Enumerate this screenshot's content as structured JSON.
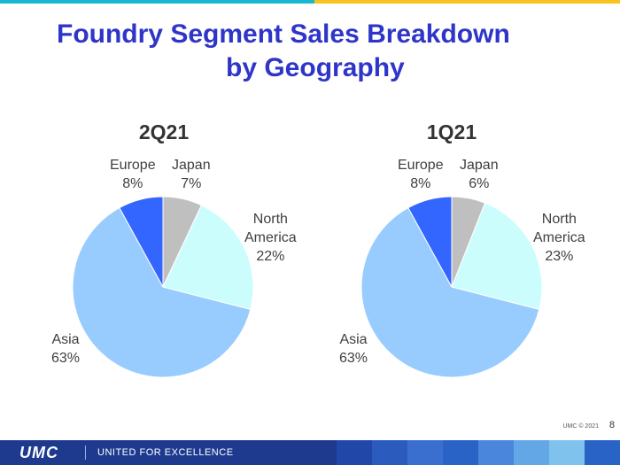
{
  "slide": {
    "title_line1": "Foundry Segment Sales Breakdown",
    "title_line2": "by Geography",
    "copyright": "UMC © 2021",
    "page_number": "8"
  },
  "footer": {
    "logo": "UMC",
    "tagline": "UNITED FOR EXCELLENCE",
    "bar_color": "#1d3a8f",
    "tile_colors": [
      "#2148a8",
      "#2a5bbd",
      "#3b6fcf",
      "#2a63c6",
      "#4a86dc",
      "#63a7e7",
      "#7fc2ee",
      "#2a63c6"
    ]
  },
  "colors": {
    "title": "#2e35c8",
    "topbar_left": "#18b6cf",
    "topbar_right": "#f7c31d"
  },
  "chart_data": [
    {
      "type": "pie",
      "title": "2Q21",
      "slices": [
        {
          "label": "Japan",
          "value": 7,
          "color": "#bfbfbf"
        },
        {
          "label": "North America",
          "value": 22,
          "color": "#ccfdfd"
        },
        {
          "label": "Asia",
          "value": 63,
          "color": "#99ccfe"
        },
        {
          "label": "Europe",
          "value": 8,
          "color": "#3366ff"
        }
      ],
      "data_labels": {
        "europe_name": "Europe",
        "europe_pct": "8%",
        "japan_name": "Japan",
        "japan_pct": "7%",
        "na_name1": "North",
        "na_name2": "America",
        "na_pct": "22%",
        "asia_name": "Asia",
        "asia_pct": "63%"
      }
    },
    {
      "type": "pie",
      "title": "1Q21",
      "slices": [
        {
          "label": "Japan",
          "value": 6,
          "color": "#bfbfbf"
        },
        {
          "label": "North America",
          "value": 23,
          "color": "#ccfdfd"
        },
        {
          "label": "Asia",
          "value": 63,
          "color": "#99ccfe"
        },
        {
          "label": "Europe",
          "value": 8,
          "color": "#3366ff"
        }
      ],
      "data_labels": {
        "europe_name": "Europe",
        "europe_pct": "8%",
        "japan_name": "Japan",
        "japan_pct": "6%",
        "na_name1": "North",
        "na_name2": "America",
        "na_pct": "23%",
        "asia_name": "Asia",
        "asia_pct": "63%"
      }
    }
  ]
}
